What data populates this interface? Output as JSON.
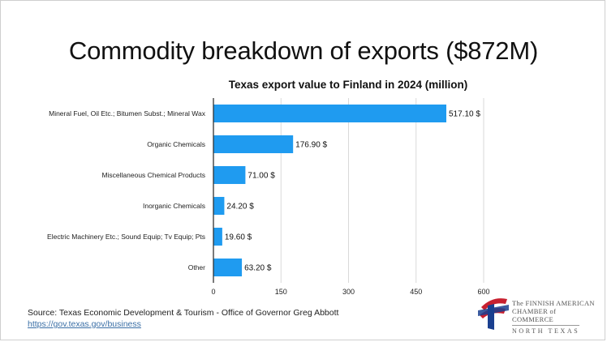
{
  "slide_title": "Commodity breakdown of exports ($872M)",
  "chart_data": {
    "type": "bar",
    "orientation": "horizontal",
    "title": "Texas export value to Finland in 2024 (million)",
    "categories": [
      "Mineral Fuel, Oil Etc.; Bitumen Subst.; Mineral Wax",
      "Organic Chemicals",
      "Miscellaneous Chemical Products",
      "Inorganic Chemicals",
      "Electric Machinery Etc.; Sound Equip; Tv Equip; Pts",
      "Other"
    ],
    "values": [
      517.1,
      176.9,
      71.0,
      24.2,
      19.6,
      63.2
    ],
    "value_labels": [
      "517.10 $",
      "176.90 $",
      "71.00 $",
      "24.20 $",
      "19.60 $",
      "63.20 $"
    ],
    "xlim": [
      0,
      600
    ],
    "xticks": [
      0,
      150,
      300,
      450,
      600
    ],
    "grid": true,
    "bar_color": "#1f9bf0",
    "xlabel": "",
    "ylabel": ""
  },
  "source": {
    "text": "Source: Texas Economic Development & Tourism - Office of Governor Greg Abbott",
    "link": "https://gov.texas.gov/business"
  },
  "logo": {
    "line1": "The FINNISH AMERICAN",
    "line2": "CHAMBER of COMMERCE",
    "line3": "NORTH TEXAS",
    "colors": {
      "red": "#c8202f",
      "blue": "#1a3f8f"
    }
  }
}
